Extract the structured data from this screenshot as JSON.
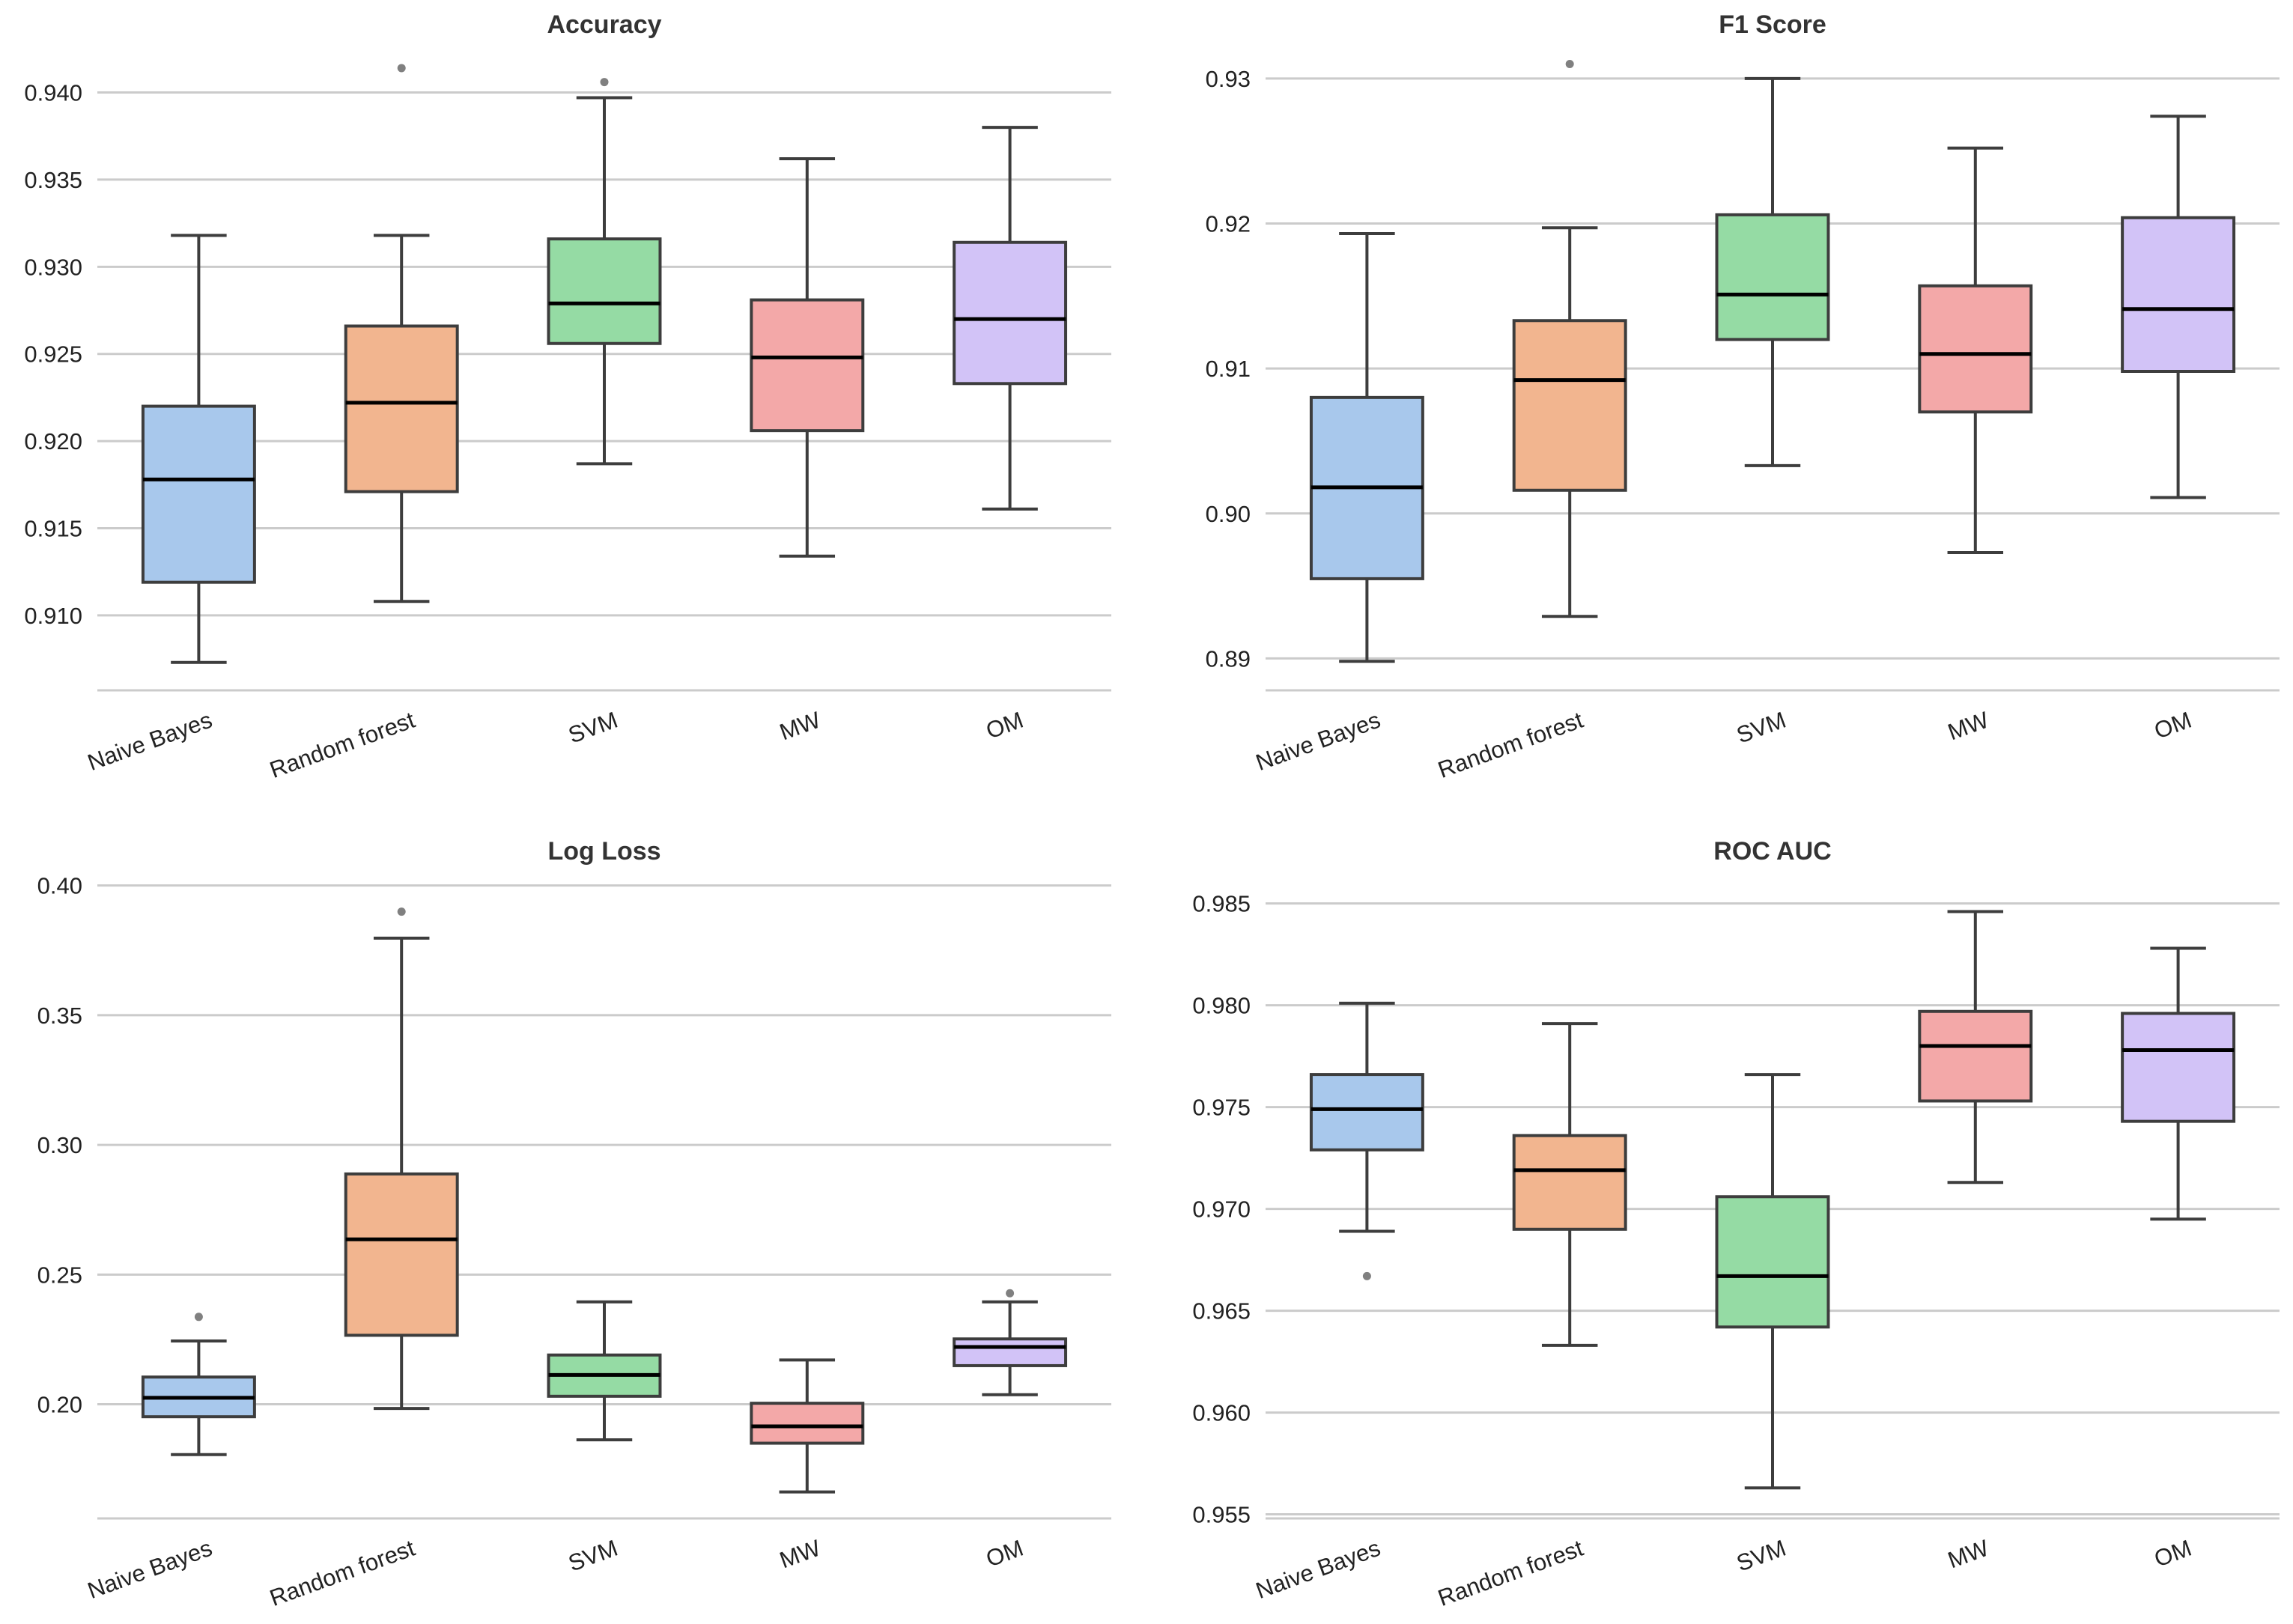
{
  "chart_data": [
    {
      "type": "box",
      "title": "Accuracy",
      "categories": [
        "Naive Bayes",
        "Random forest",
        "SVM",
        "MW",
        "OM"
      ],
      "yticks": [
        "0.910",
        "0.915",
        "0.920",
        "0.925",
        "0.930",
        "0.935",
        "0.940"
      ],
      "ylim": [
        0.9057,
        0.9423
      ],
      "boxes": [
        {
          "whislo": 0.9073,
          "q1": 0.9119,
          "med": 0.9178,
          "q3": 0.922,
          "whishi": 0.9318,
          "fliers": []
        },
        {
          "whislo": 0.9108,
          "q1": 0.9171,
          "med": 0.9222,
          "q3": 0.9266,
          "whishi": 0.9318,
          "fliers": [
            0.9414
          ]
        },
        {
          "whislo": 0.9187,
          "q1": 0.9256,
          "med": 0.9279,
          "q3": 0.9316,
          "whishi": 0.9397,
          "fliers": [
            0.9406
          ]
        },
        {
          "whislo": 0.9134,
          "q1": 0.9206,
          "med": 0.9248,
          "q3": 0.9281,
          "whishi": 0.9362,
          "fliers": []
        },
        {
          "whislo": 0.9161,
          "q1": 0.9233,
          "med": 0.927,
          "q3": 0.9314,
          "whishi": 0.938,
          "fliers": []
        }
      ]
    },
    {
      "type": "box",
      "title": "F1 Score",
      "categories": [
        "Naive Bayes",
        "Random forest",
        "SVM",
        "MW",
        "OM"
      ],
      "yticks": [
        "0.89",
        "0.90",
        "0.91",
        "0.92",
        "0.93"
      ],
      "ylim": [
        0.8878,
        0.9318
      ],
      "boxes": [
        {
          "whislo": 0.8898,
          "q1": 0.8955,
          "med": 0.9018,
          "q3": 0.908,
          "whishi": 0.9193,
          "fliers": []
        },
        {
          "whislo": 0.8929,
          "q1": 0.9016,
          "med": 0.9092,
          "q3": 0.9133,
          "whishi": 0.9197,
          "fliers": [
            0.931
          ]
        },
        {
          "whislo": 0.9033,
          "q1": 0.912,
          "med": 0.9151,
          "q3": 0.9206,
          "whishi": 0.93,
          "fliers": []
        },
        {
          "whislo": 0.8973,
          "q1": 0.907,
          "med": 0.911,
          "q3": 0.9157,
          "whishi": 0.9252,
          "fliers": []
        },
        {
          "whislo": 0.9011,
          "q1": 0.9098,
          "med": 0.9141,
          "q3": 0.9204,
          "whishi": 0.9274,
          "fliers": []
        }
      ]
    },
    {
      "type": "box",
      "title": "Log Loss",
      "categories": [
        "Naive Bayes",
        "Random forest",
        "SVM",
        "MW",
        "OM"
      ],
      "yticks": [
        "0.20",
        "0.25",
        "0.30",
        "0.35",
        "0.40"
      ],
      "ylim": [
        0.156,
        0.4025
      ],
      "boxes": [
        {
          "whislo": 0.1806,
          "q1": 0.1952,
          "med": 0.2025,
          "q3": 0.2105,
          "whishi": 0.2244,
          "fliers": [
            0.2337
          ]
        },
        {
          "whislo": 0.1984,
          "q1": 0.2266,
          "med": 0.2636,
          "q3": 0.2888,
          "whishi": 0.3797,
          "fliers": [
            0.3899
          ]
        },
        {
          "whislo": 0.1863,
          "q1": 0.2031,
          "med": 0.2113,
          "q3": 0.219,
          "whishi": 0.2395,
          "fliers": []
        },
        {
          "whislo": 0.1662,
          "q1": 0.185,
          "med": 0.1915,
          "q3": 0.2004,
          "whishi": 0.2171,
          "fliers": []
        },
        {
          "whislo": 0.2037,
          "q1": 0.2149,
          "med": 0.2221,
          "q3": 0.2252,
          "whishi": 0.2395,
          "fliers": [
            0.2428
          ]
        }
      ]
    },
    {
      "type": "box",
      "title": "ROC AUC",
      "categories": [
        "Naive Bayes",
        "Random forest",
        "SVM",
        "MW",
        "OM"
      ],
      "yticks": [
        "0.955",
        "0.960",
        "0.965",
        "0.970",
        "0.975",
        "0.980",
        "0.985"
      ],
      "ylim": [
        0.9548,
        0.9862
      ],
      "boxes": [
        {
          "whislo": 0.9689,
          "q1": 0.9729,
          "med": 0.9749,
          "q3": 0.9766,
          "whishi": 0.9801,
          "fliers": [
            0.9667
          ]
        },
        {
          "whislo": 0.9633,
          "q1": 0.969,
          "med": 0.9719,
          "q3": 0.9736,
          "whishi": 0.9791,
          "fliers": []
        },
        {
          "whislo": 0.9563,
          "q1": 0.9642,
          "med": 0.9667,
          "q3": 0.9706,
          "whishi": 0.9766,
          "fliers": []
        },
        {
          "whislo": 0.9713,
          "q1": 0.9753,
          "med": 0.978,
          "q3": 0.9797,
          "whishi": 0.9846,
          "fliers": []
        },
        {
          "whislo": 0.9695,
          "q1": 0.9743,
          "med": 0.9778,
          "q3": 0.9796,
          "whishi": 0.9828,
          "fliers": []
        }
      ]
    }
  ],
  "colors": {
    "boxes": [
      "#a8c8ec",
      "#f2b58f",
      "#95dba4",
      "#f3a8a8",
      "#d2c3f7"
    ],
    "edge": "#3d3d3d",
    "median": "#000000",
    "grid": "#cbcbcb",
    "flier": "#808080"
  }
}
